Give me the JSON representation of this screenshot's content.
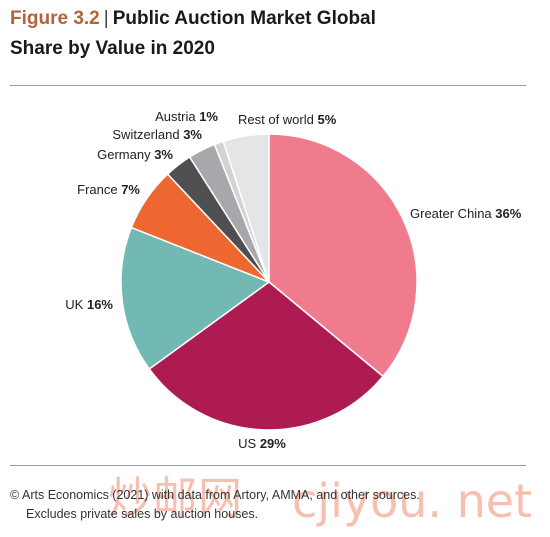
{
  "header": {
    "figure_label": "Figure 3.2",
    "separator": "|",
    "title_line1": "Public Auction Market Global",
    "title_line2": "Share by Value in 2020"
  },
  "chart_data": {
    "type": "pie",
    "title": "Public Auction Market Global Share by Value in 2020",
    "unit": "%",
    "slices": [
      {
        "label": "Greater China",
        "value": 36,
        "color": "#f07b8c"
      },
      {
        "label": "US",
        "value": 29,
        "color": "#ad1b52"
      },
      {
        "label": "UK",
        "value": 16,
        "color": "#72b9b3"
      },
      {
        "label": "France",
        "value": 7,
        "color": "#ee6630"
      },
      {
        "label": "Germany",
        "value": 3,
        "color": "#4f4f51"
      },
      {
        "label": "Switzerland",
        "value": 3,
        "color": "#a6a8ab"
      },
      {
        "label": "Austria",
        "value": 1,
        "color": "#d1d3d4"
      },
      {
        "label": "Rest of world",
        "value": 5,
        "color": "#e4e5e6"
      }
    ],
    "start_direction": "12 o'clock",
    "direction": "clockwise"
  },
  "footer": {
    "source_line1": "© Arts Economics (2021) with data from Artory, AMMA, and other sources.",
    "source_line2": "Excludes private sales by auction houses."
  },
  "watermark": {
    "text_cn": "炒邮网",
    "text_url": "cjiyou. net"
  }
}
